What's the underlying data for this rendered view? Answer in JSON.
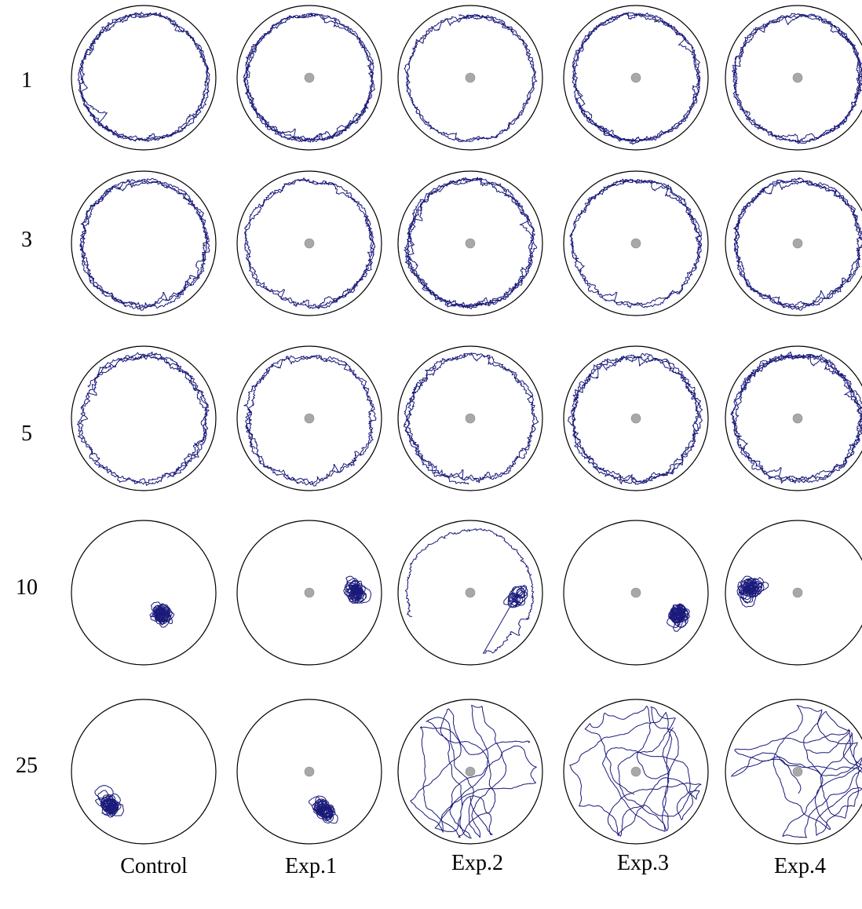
{
  "row_labels": [
    "1",
    "3",
    "5",
    "10",
    "25"
  ],
  "column_labels": [
    "Control",
    "Exp.1",
    "Exp.2",
    "Exp.3",
    "Exp.4"
  ],
  "colors": {
    "arena_outline": "#000000",
    "swim_path": "#1a1a7a",
    "platform_fill": "#a8a8a8"
  },
  "icons": {
    "platform": "platform-icon"
  },
  "platform_visible": [
    [
      false,
      true,
      true,
      true,
      true
    ],
    [
      false,
      true,
      true,
      true,
      true
    ],
    [
      false,
      true,
      true,
      true,
      true
    ],
    [
      false,
      true,
      true,
      true,
      true
    ],
    [
      false,
      true,
      true,
      true,
      true
    ]
  ],
  "path_behavior": [
    [
      "wall-following",
      "wall-following",
      "wall-following",
      "wall-following",
      "wall-following"
    ],
    [
      "wall-following",
      "wall-following",
      "wall-following",
      "wall-following",
      "wall-following"
    ],
    [
      "wall-following",
      "wall-following",
      "wall-following",
      "wall-following",
      "wall-following"
    ],
    [
      "localized-cluster",
      "localized-cluster",
      "partial-wall",
      "localized-cluster",
      "localized-cluster"
    ],
    [
      "localized-cluster",
      "localized-cluster",
      "wandering",
      "wandering",
      "wandering"
    ]
  ]
}
